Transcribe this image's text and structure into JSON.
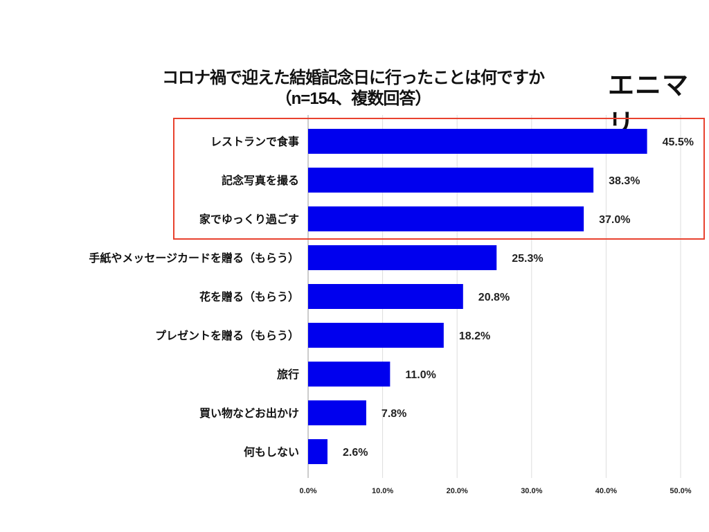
{
  "logo": "エニマリ",
  "chart_data": {
    "type": "bar",
    "orientation": "horizontal",
    "title": "コロナ禍で迎えた結婚記念日に行ったことは何ですか",
    "subtitle": "（n=154、複数回答）",
    "categories": [
      "レストランで食事",
      "記念写真を撮る",
      "家でゆっくり過ごす",
      "手紙やメッセージカードを贈る（もらう）",
      "花を贈る（もらう）",
      "プレゼントを贈る（もらう）",
      "旅行",
      "買い物などお出かけ",
      "何もしない"
    ],
    "values": [
      45.5,
      38.3,
      37.0,
      25.3,
      20.8,
      18.2,
      11.0,
      7.8,
      2.6
    ],
    "data_labels": [
      "45.5%",
      "38.3%",
      "37.0%",
      "25.3%",
      "20.8%",
      "18.2%",
      "11.0%",
      "7.8%",
      "2.6%"
    ],
    "xlim": [
      0,
      50
    ],
    "x_ticks": [
      "0.0%",
      "10.0%",
      "20.0%",
      "30.0%",
      "40.0%",
      "50.0%"
    ],
    "grid": true,
    "bar_color": "#0000ee",
    "highlight": {
      "categories": [
        "レストランで食事",
        "記念写真を撮る",
        "家でゆっくり過ごす"
      ],
      "color": "#e8412e"
    }
  }
}
